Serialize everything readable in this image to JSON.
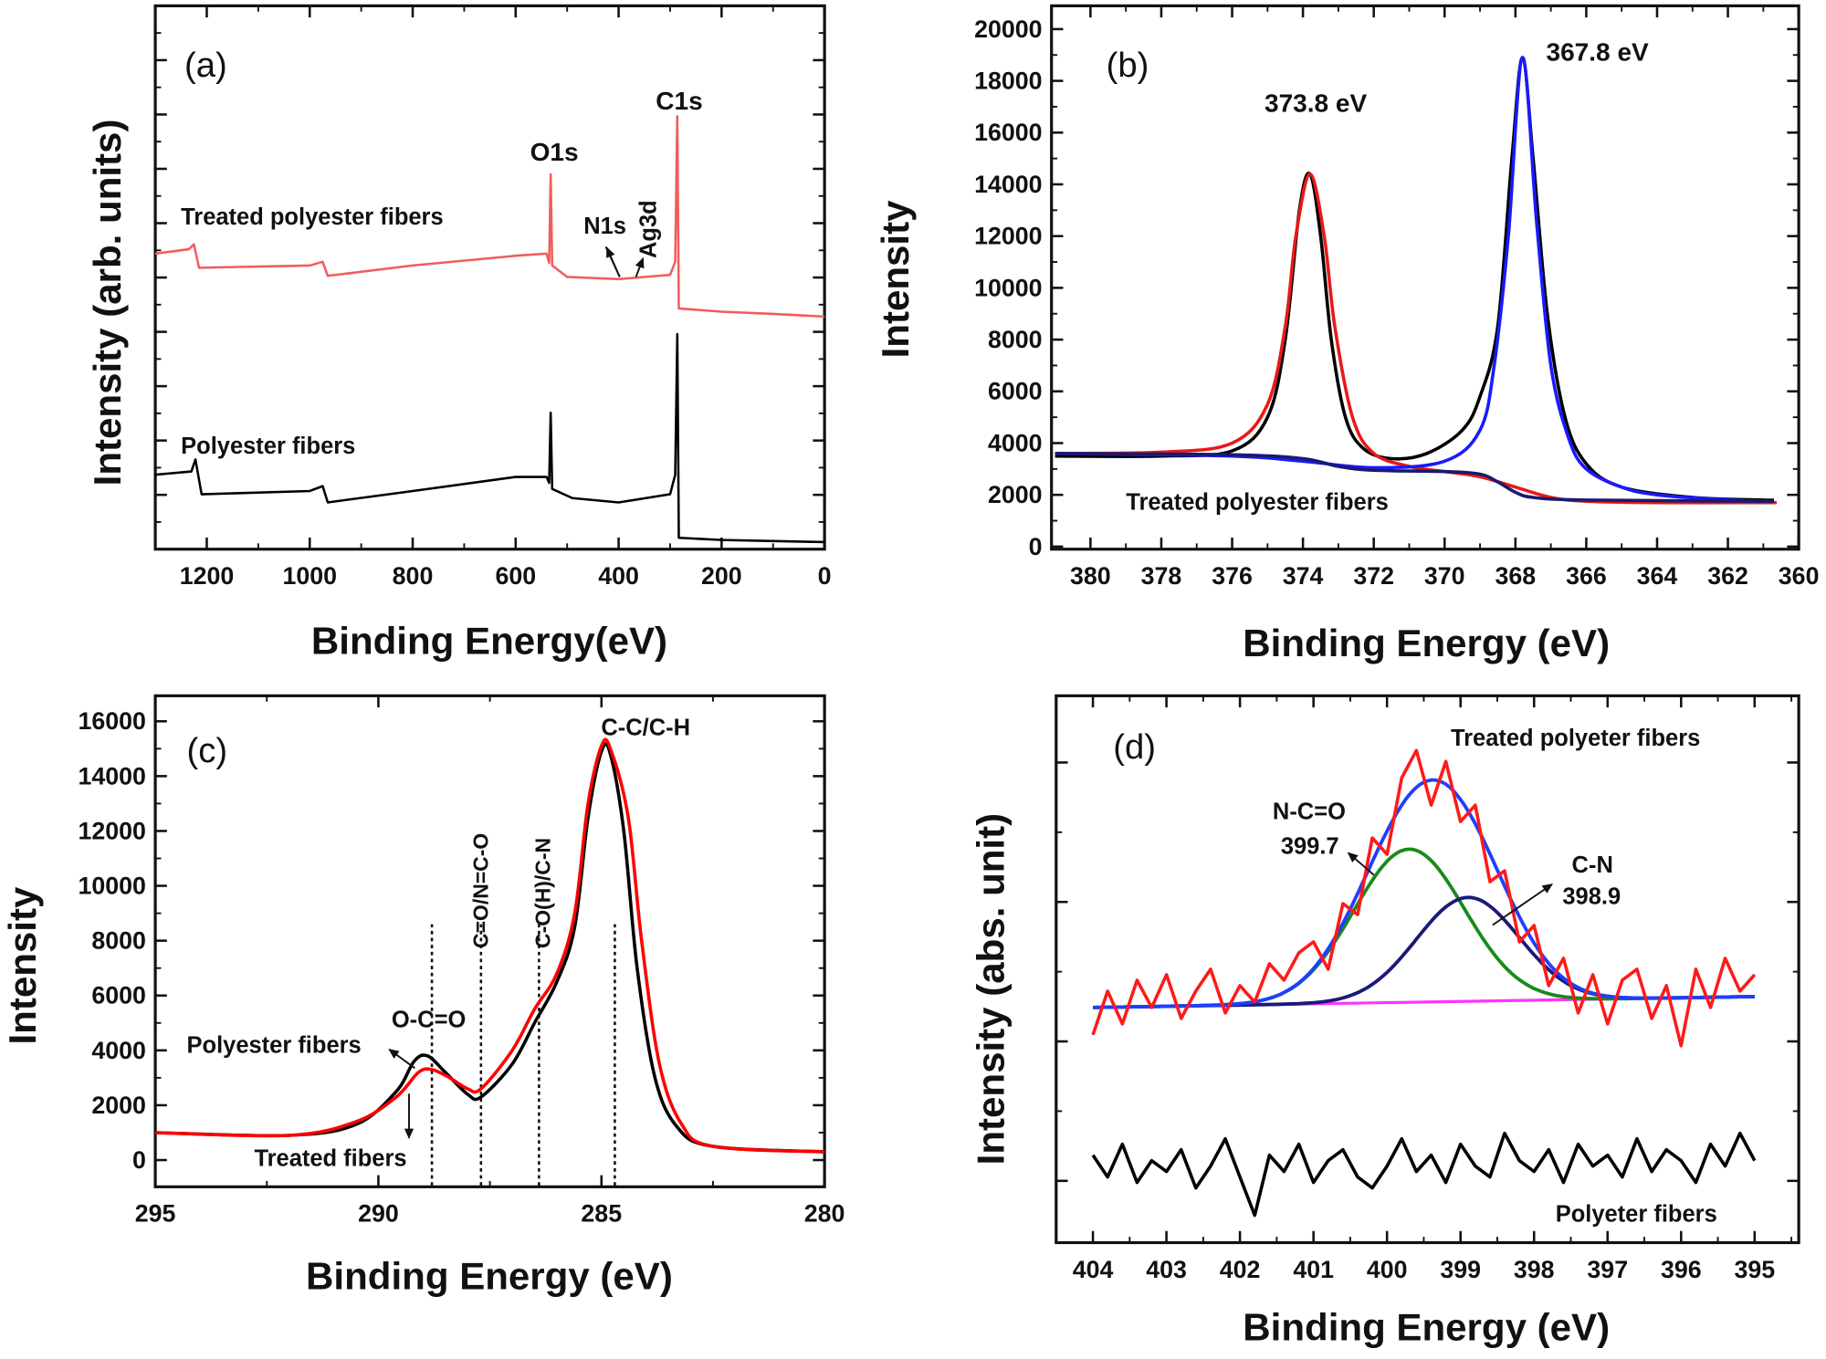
{
  "chart_data": [
    {
      "panel": "(a)",
      "type": "line",
      "xlabel": "Binding Energy(eV)",
      "ylabel": "Intensity (arb. units)",
      "xlim": [
        1300,
        0
      ],
      "x_ticks": [
        1200,
        1000,
        800,
        600,
        400,
        200,
        0
      ],
      "ylim": [
        0,
        100
      ],
      "y_tick_labels": false,
      "grid": false,
      "annotations": [
        "(a)",
        "C1s",
        "O1s",
        "Treated polyester fibers",
        "N1s",
        "Ag3d",
        "Polyester fibers"
      ],
      "series": [
        {
          "name": "Treated polyester fibers",
          "color": "#f25c5c",
          "points": [
            [
              1300,
              54.4
            ],
            [
              1235,
              55.2
            ],
            [
              1225,
              56.1
            ],
            [
              1215,
              51.8
            ],
            [
              1000,
              52.2
            ],
            [
              975,
              52.9
            ],
            [
              965,
              50.3
            ],
            [
              800,
              52.2
            ],
            [
              600,
              54
            ],
            [
              540,
              54.4
            ],
            [
              535,
              52.7
            ],
            [
              532,
              69
            ],
            [
              529,
              52.2
            ],
            [
              500,
              50.1
            ],
            [
              400,
              49.7
            ],
            [
              300,
              50.5
            ],
            [
              290,
              52.9
            ],
            [
              286,
              79.7
            ],
            [
              283,
              44.3
            ],
            [
              200,
              43.7
            ],
            [
              100,
              43.3
            ],
            [
              0,
              42.8
            ]
          ]
        },
        {
          "name": "Polyester fibers",
          "color": "#000000",
          "points": [
            [
              1300,
              13.7
            ],
            [
              1230,
              14.3
            ],
            [
              1222,
              16.5
            ],
            [
              1210,
              10.1
            ],
            [
              1000,
              10.7
            ],
            [
              975,
              11.6
            ],
            [
              965,
              8.6
            ],
            [
              800,
              10.7
            ],
            [
              600,
              13.3
            ],
            [
              540,
              13.3
            ],
            [
              535,
              12.2
            ],
            [
              532,
              25.1
            ],
            [
              529,
              11.1
            ],
            [
              490,
              9.4
            ],
            [
              400,
              8.6
            ],
            [
              300,
              10.1
            ],
            [
              290,
              13.7
            ],
            [
              286,
              39.6
            ],
            [
              283,
              2.1
            ],
            [
              200,
              1.7
            ],
            [
              0,
              1.3
            ]
          ]
        }
      ]
    },
    {
      "panel": "(b)",
      "type": "line",
      "xlabel": "Binding Energy (eV)",
      "ylabel": "Intensity",
      "xlim": [
        381.1,
        360
      ],
      "x_ticks": [
        380,
        378,
        376,
        374,
        372,
        370,
        368,
        366,
        364,
        362,
        360
      ],
      "ylim": [
        -100,
        20900
      ],
      "y_ticks": [
        0,
        2000,
        4000,
        6000,
        8000,
        10000,
        12000,
        14000,
        16000,
        18000,
        20000
      ],
      "grid": false,
      "annotations": [
        "(b)",
        "367.8 eV",
        "373.8 eV",
        "Treated polyester fibers"
      ],
      "series": [
        {
          "color": "#000000",
          "points": [
            [
              381,
              3500
            ],
            [
              378,
              3500
            ],
            [
              376,
              3700
            ],
            [
              375,
              5000
            ],
            [
              374.5,
              8000
            ],
            [
              374.1,
              13000
            ],
            [
              373.8,
              14400
            ],
            [
              373.5,
              12000
            ],
            [
              373.2,
              8000
            ],
            [
              372.8,
              5000
            ],
            [
              372.3,
              3800
            ],
            [
              371.5,
              3400
            ],
            [
              370.5,
              3600
            ],
            [
              369.5,
              4500
            ],
            [
              369,
              5800
            ],
            [
              368.5,
              8500
            ],
            [
              368.1,
              15000
            ],
            [
              367.8,
              18900
            ],
            [
              367.5,
              15000
            ],
            [
              367.1,
              9000
            ],
            [
              366.6,
              5000
            ],
            [
              366,
              3200
            ],
            [
              365,
              2300
            ],
            [
              363,
              1900
            ],
            [
              361,
              1800
            ],
            [
              360.7,
              1800
            ]
          ]
        },
        {
          "color": "#e8191a",
          "points": [
            [
              381,
              3600
            ],
            [
              378,
              3650
            ],
            [
              376,
              4000
            ],
            [
              375,
              5500
            ],
            [
              374.5,
              8500
            ],
            [
              374.2,
              12000
            ],
            [
              373.8,
              14400
            ],
            [
              373.4,
              12000
            ],
            [
              373.1,
              8500
            ],
            [
              372.6,
              5000
            ],
            [
              372,
              3600
            ],
            [
              371,
              3100
            ],
            [
              370,
              2900
            ],
            [
              369,
              2700
            ],
            [
              368,
              2300
            ],
            [
              367,
              1900
            ],
            [
              366,
              1750
            ],
            [
              364,
              1700
            ],
            [
              361,
              1700
            ],
            [
              360.7,
              1700
            ]
          ]
        },
        {
          "color": "#1a1aff",
          "points": [
            [
              381,
              3600
            ],
            [
              376,
              3500
            ],
            [
              374,
              3300
            ],
            [
              372,
              3050
            ],
            [
              370,
              3300
            ],
            [
              369,
              4500
            ],
            [
              368.6,
              7000
            ],
            [
              368.2,
              12000
            ],
            [
              367.8,
              18900
            ],
            [
              367.4,
              12500
            ],
            [
              367,
              7000
            ],
            [
              366.5,
              4200
            ],
            [
              366,
              3000
            ],
            [
              365,
              2300
            ],
            [
              364,
              2000
            ],
            [
              362,
              1800
            ],
            [
              360.7,
              1750
            ]
          ]
        },
        {
          "color": "#1a1a6e",
          "points": [
            [
              381,
              3600
            ],
            [
              376,
              3550
            ],
            [
              374,
              3400
            ],
            [
              373,
              3100
            ],
            [
              372,
              2950
            ],
            [
              370,
              2900
            ],
            [
              369,
              2800
            ],
            [
              368.5,
              2500
            ],
            [
              368,
              2100
            ],
            [
              367.5,
              1900
            ],
            [
              366,
              1800
            ],
            [
              360.7,
              1750
            ]
          ]
        }
      ]
    },
    {
      "panel": "(c)",
      "type": "line",
      "xlabel": "Binding Energy (eV)",
      "ylabel": "Intensity",
      "xlim": [
        295,
        280
      ],
      "x_ticks": [
        295,
        290,
        285,
        280
      ],
      "ylim": [
        -975,
        16930
      ],
      "y_ticks": [
        0,
        2000,
        4000,
        6000,
        8000,
        10000,
        12000,
        14000,
        16000
      ],
      "grid": false,
      "reference_lines": [
        288.8,
        287.7,
        286.4,
        284.7
      ],
      "annotations": [
        "(c)",
        "C-C/C-H",
        "C=O/N=C-O",
        "C-O(H)/C-N",
        "O-C=O",
        "Polyester fibers",
        "Treated fibers"
      ],
      "series": [
        {
          "name": "Polyester fibers",
          "color": "#000000",
          "points": [
            [
              295,
              1000
            ],
            [
              292,
              900
            ],
            [
              290.5,
              1300
            ],
            [
              289.6,
              2500
            ],
            [
              289.2,
              3600
            ],
            [
              288.9,
              3800
            ],
            [
              288.5,
              3200
            ],
            [
              288,
              2400
            ],
            [
              287.7,
              2300
            ],
            [
              287,
              3500
            ],
            [
              286.5,
              5000
            ],
            [
              286,
              6500
            ],
            [
              285.6,
              8500
            ],
            [
              285.3,
              12500
            ],
            [
              285,
              14900
            ],
            [
              284.8,
              14800
            ],
            [
              284.5,
              12000
            ],
            [
              284.2,
              7000
            ],
            [
              283.8,
              3000
            ],
            [
              283.3,
              1200
            ],
            [
              282.5,
              500
            ],
            [
              280,
              300
            ]
          ]
        },
        {
          "name": "Treated fibers",
          "color": "#ff0000",
          "points": [
            [
              295,
              1000
            ],
            [
              292,
              900
            ],
            [
              290.5,
              1400
            ],
            [
              289.6,
              2300
            ],
            [
              289.1,
              3200
            ],
            [
              288.8,
              3300
            ],
            [
              288.4,
              3000
            ],
            [
              288,
              2600
            ],
            [
              287.7,
              2600
            ],
            [
              287,
              4000
            ],
            [
              286.5,
              5500
            ],
            [
              286,
              6800
            ],
            [
              285.6,
              9000
            ],
            [
              285.3,
              13000
            ],
            [
              285,
              15100
            ],
            [
              284.8,
              15000
            ],
            [
              284.4,
              12500
            ],
            [
              284.1,
              8000
            ],
            [
              283.7,
              3500
            ],
            [
              283.2,
              1300
            ],
            [
              282.5,
              500
            ],
            [
              280,
              300
            ]
          ]
        }
      ]
    },
    {
      "panel": "(d)",
      "type": "line",
      "xlabel": "Binding Energy (eV)",
      "ylabel": "Intensity (abs. unit)",
      "xlim": [
        404.5,
        394.4
      ],
      "x_ticks": [
        404,
        403,
        402,
        401,
        400,
        399,
        398,
        397,
        396,
        395
      ],
      "ylim": [
        0,
        100
      ],
      "y_tick_labels": false,
      "grid": false,
      "annotations": [
        "(d)",
        "Treated polyeter fibers",
        "N-C=O",
        "399.7",
        "C-N",
        "398.9",
        "Polyeter fibers"
      ],
      "x_sample_start": 404,
      "x_sample_step": -0.2,
      "series": [
        {
          "name": "Treated polyeter fibers",
          "color": "#ff1a1a",
          "values": [
            38,
            46,
            40,
            48,
            43,
            49,
            41,
            46,
            50,
            42,
            47,
            44,
            51,
            48,
            53,
            55,
            50,
            62,
            60,
            74,
            71,
            85,
            90,
            80,
            88,
            77,
            80,
            66,
            68,
            55,
            58,
            47,
            52,
            42,
            49,
            40,
            48,
            50,
            41,
            47,
            36,
            50,
            43,
            52,
            46,
            49
          ]
        },
        {
          "name": "Polyeter fibers",
          "color": "#000000",
          "values": [
            16,
            12,
            18,
            11,
            15,
            13,
            17,
            10,
            14,
            19,
            12,
            5,
            16,
            13,
            18,
            11,
            15,
            17,
            12,
            10,
            14,
            19,
            13,
            16,
            11,
            18,
            14,
            12,
            20,
            15,
            13,
            17,
            11,
            18,
            14,
            16,
            12,
            19,
            13,
            17,
            15,
            11,
            18,
            14,
            20,
            15
          ]
        }
      ],
      "fit": {
        "baseline": {
          "color": "#ff33ff",
          "points": [
            [
              404,
              43
            ],
            [
              395,
              45
            ]
          ]
        },
        "peaks": [
          {
            "label": "N-C=O",
            "center": 399.7,
            "amplitude": 28,
            "sigma": 0.75,
            "color": "#1a8a1a"
          },
          {
            "label": "C-N",
            "center": 398.9,
            "amplitude": 19,
            "sigma": 0.7,
            "color": "#1a1a7a"
          }
        ],
        "envelope_color": "#1f3fff"
      }
    }
  ]
}
